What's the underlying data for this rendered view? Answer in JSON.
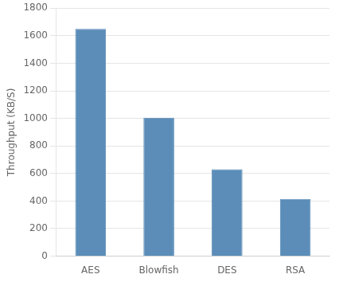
{
  "chart_data": {
    "type": "bar",
    "categories": [
      "AES",
      "Blowfish",
      "DES",
      "RSA"
    ],
    "values": [
      1650,
      1005,
      630,
      415
    ],
    "color": "#5B8DB8",
    "ylabel": "Throughput (KB/S)",
    "ylim": [
      0,
      1800
    ],
    "yticks": [
      0,
      200,
      400,
      600,
      800,
      1000,
      1200,
      1400,
      1600,
      1800
    ],
    "grid": true
  }
}
